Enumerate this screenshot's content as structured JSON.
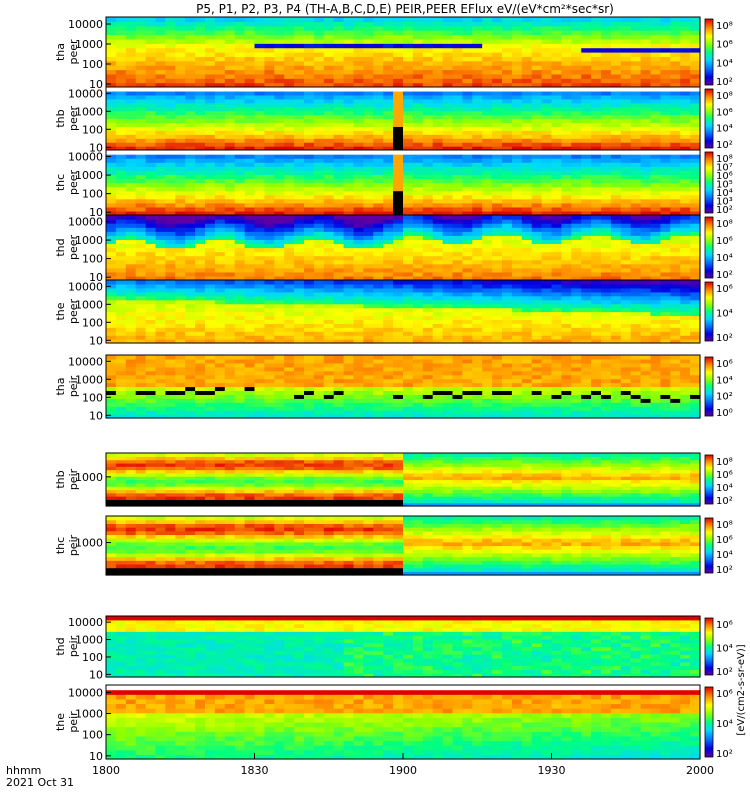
{
  "chart_data": {
    "type": "heatmap",
    "title": "P5, P1, P2, P3, P4 (TH-A,B,C,D,E) PEIR,PEER EFlux eV/(eV*cm²*sec*sr)",
    "x_axis": {
      "ticks": [
        "1800",
        "1830",
        "1900",
        "1930",
        "2000"
      ],
      "corner_label_1": "hhmm",
      "corner_label_2": "2021 Oct 31"
    },
    "colorbar_label": "[eV/(cm2-s-sr-eV)]",
    "panels": [
      {
        "id": "tha-peer",
        "ylabel_1": "tha",
        "ylabel_2": "peer",
        "yticks": [
          "10000",
          "1000",
          "100",
          "10"
        ],
        "cbar_ticks": [
          "10⁸",
          "10⁶",
          "10⁴",
          "10²"
        ],
        "species": "electron",
        "probe": "a"
      },
      {
        "id": "thb-peer",
        "ylabel_1": "thb",
        "ylabel_2": "peer",
        "yticks": [
          "10000",
          "1000",
          "100",
          "10"
        ],
        "cbar_ticks": [
          "10⁸",
          "10⁶",
          "10⁴",
          "10²"
        ],
        "species": "electron",
        "probe": "b"
      },
      {
        "id": "thc-peer",
        "ylabel_1": "thc",
        "ylabel_2": "peer",
        "yticks": [
          "10000",
          "1000",
          "100",
          "10"
        ],
        "cbar_ticks": [
          "10⁸",
          "10⁷",
          "10⁶",
          "10⁵",
          "10⁴",
          "10³",
          "10²"
        ],
        "species": "electron",
        "probe": "c"
      },
      {
        "id": "thd-peer",
        "ylabel_1": "thd",
        "ylabel_2": "peer",
        "yticks": [
          "10000",
          "1000",
          "100",
          "10"
        ],
        "cbar_ticks": [
          "10⁸",
          "10⁶",
          "10⁴",
          "10²"
        ],
        "species": "electron",
        "probe": "d"
      },
      {
        "id": "the-peer",
        "ylabel_1": "the",
        "ylabel_2": "peer",
        "yticks": [
          "10000",
          "1000",
          "100",
          "10"
        ],
        "cbar_ticks": [
          "10⁶",
          "10⁴",
          "10²"
        ],
        "species": "electron",
        "probe": "e"
      },
      {
        "id": "tha-peir",
        "ylabel_1": "tha",
        "ylabel_2": "peir",
        "yticks": [
          "10000",
          "1000",
          "100",
          "10"
        ],
        "cbar_ticks": [
          "10⁶",
          "10⁴",
          "10²",
          "10⁰"
        ],
        "species": "ion",
        "probe": "a"
      },
      {
        "id": "thb-peir",
        "ylabel_1": "thb",
        "ylabel_2": "peir",
        "yticks": [
          "1000"
        ],
        "cbar_ticks": [
          "10⁸",
          "10⁶",
          "10⁴",
          "10²"
        ],
        "species": "ion",
        "probe": "b"
      },
      {
        "id": "thc-peir",
        "ylabel_1": "thc",
        "ylabel_2": "peir",
        "yticks": [
          "1000"
        ],
        "cbar_ticks": [
          "10⁸",
          "10⁶",
          "10⁴",
          "10²"
        ],
        "species": "ion",
        "probe": "c"
      },
      {
        "id": "thd-peir",
        "ylabel_1": "thd",
        "ylabel_2": "peir",
        "yticks": [
          "10000",
          "1000",
          "100",
          "10"
        ],
        "cbar_ticks": [
          "10⁶",
          "10⁴",
          "10²"
        ],
        "species": "ion",
        "probe": "d"
      },
      {
        "id": "the-peir",
        "ylabel_1": "the",
        "ylabel_2": "peir",
        "yticks": [
          "10000",
          "1000",
          "100",
          "10"
        ],
        "cbar_ticks": [
          "10⁶",
          "10⁴",
          "10²"
        ],
        "species": "ion",
        "probe": "e"
      }
    ],
    "colors": {
      "colorbar": [
        "#7000a0",
        "#0000e0",
        "#0070ff",
        "#00d0ff",
        "#00ff90",
        "#80ff00",
        "#ffff00",
        "#ffb000",
        "#ff5000",
        "#e00000"
      ],
      "gap": "#ffffff",
      "saturated": "#000000"
    }
  }
}
